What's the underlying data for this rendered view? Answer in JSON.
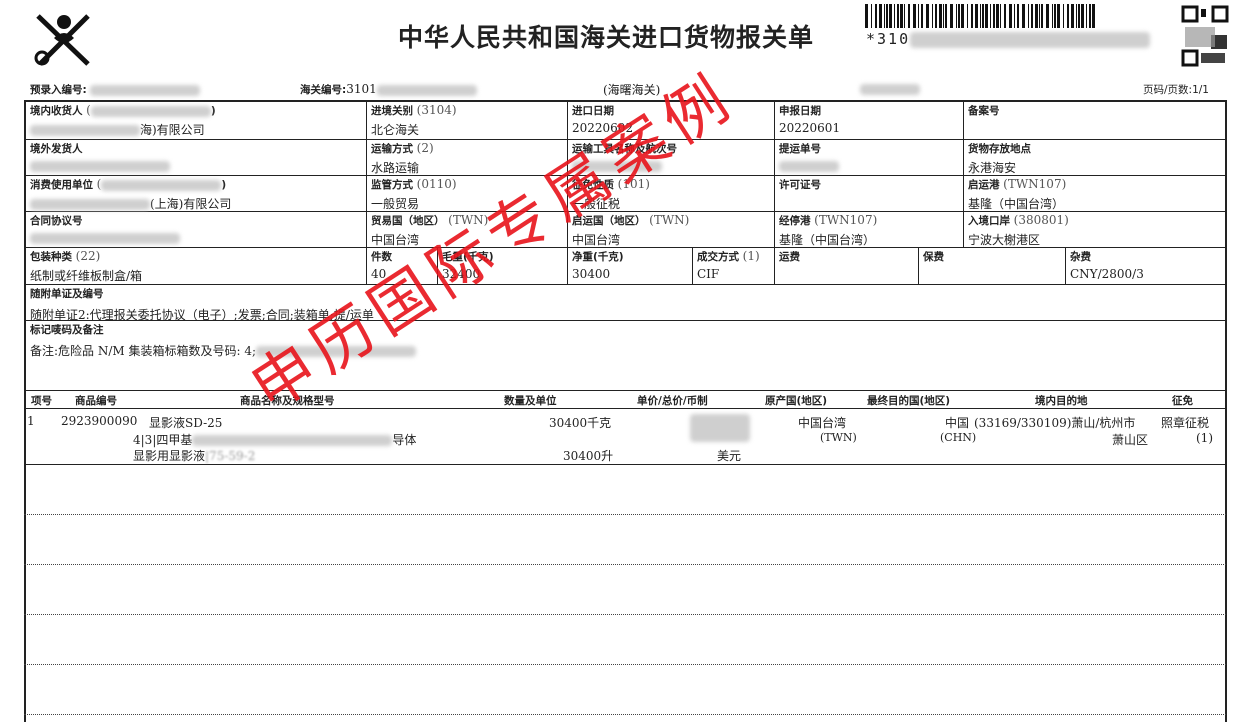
{
  "header": {
    "title": "中华人民共和国海关进口货物报关单",
    "barcode_prefix": "*310",
    "pre_entry_label": "预录入编号:",
    "customs_no_label": "海关编号:",
    "customs_no": "3101",
    "customs_office": "(海曙海关)",
    "page_label": "页码/页数:1/1"
  },
  "fields": {
    "consignee": {
      "label": "境内收货人",
      "code": "(",
      "value": "海)有限公司"
    },
    "entry_customs": {
      "label": "进境关别",
      "code": "(3104)",
      "value": "北仑海关"
    },
    "import_date": {
      "label": "进口日期",
      "value": "20220602"
    },
    "declare_date": {
      "label": "申报日期",
      "value": "20220601"
    },
    "record_no": {
      "label": "备案号",
      "value": ""
    },
    "consignor": {
      "label": "境外发货人",
      "value": ""
    },
    "transport_mode": {
      "label": "运输方式",
      "code": "(2)",
      "value": "水路运输"
    },
    "vessel": {
      "label": "运输工具名称及航次号",
      "value": ""
    },
    "bill_no": {
      "label": "提运单号",
      "value": ""
    },
    "storage": {
      "label": "货物存放地点",
      "value": "永港海安"
    },
    "consumer": {
      "label": "消费使用单位",
      "code": "(",
      "value": "(上海)有限公司"
    },
    "supervision": {
      "label": "监管方式",
      "code": "(0110)",
      "value": "一般贸易"
    },
    "levy_nature": {
      "label": "征免性质",
      "code": "(101)",
      "value": "一般征税"
    },
    "license": {
      "label": "许可证号",
      "value": ""
    },
    "departure_port": {
      "label": "启运港",
      "code": "(TWN107)",
      "value": "基隆（中国台湾）"
    },
    "contract": {
      "label": "合同协议号",
      "value": ""
    },
    "trade_country": {
      "label": "贸易国（地区）",
      "code": "(TWN)",
      "value": "中国台湾"
    },
    "origin_country": {
      "label": "启运国（地区）",
      "code": "(TWN)",
      "value": "中国台湾"
    },
    "transit_port": {
      "label": "经停港",
      "code": "(TWN107)",
      "value": "基隆（中国台湾）"
    },
    "entry_port": {
      "label": "入境口岸",
      "code": "(380801)",
      "value": "宁波大榭港区"
    },
    "package_type": {
      "label": "包装种类",
      "code": "(22)",
      "value": "纸制或纤维板制盒/箱"
    },
    "pieces": {
      "label": "件数",
      "value": "40"
    },
    "gross_weight": {
      "label": "毛重(千克)",
      "value": "32400"
    },
    "net_weight": {
      "label": "净重(千克)",
      "value": "30400"
    },
    "trans_mode": {
      "label": "成交方式",
      "code": "(1)",
      "value": "CIF"
    },
    "freight": {
      "label": "运费",
      "value": ""
    },
    "insurance": {
      "label": "保费",
      "value": ""
    },
    "misc": {
      "label": "杂费",
      "value": "CNY/2800/3"
    },
    "documents": {
      "label": "随附单证及编号",
      "value": "随附单证2:代理报关委托协议（电子）;发票;合同;装箱单;提/运单"
    },
    "marks": {
      "label": "标记唛码及备注",
      "value": "备注:危险品 N/M  集装箱标箱数及号码: 4;"
    }
  },
  "items": {
    "headers": [
      "项号",
      "商品编号",
      "商品名称及规格型号",
      "数量及单位",
      "单价/总价/币制",
      "原产国(地区)",
      "最终目的国(地区)",
      "境内目的地",
      "征免"
    ],
    "rows": [
      {
        "no": "1",
        "hs": "2923900090",
        "name": "显影液SD-25",
        "spec1": "4|3|四甲基",
        "spec1b": "导体",
        "spec2": "显影用显影液",
        "spec2b": "|75-59-2",
        "qty1": "30400千克",
        "qty2": "30400升",
        "currency": "美元",
        "origin": "中国台湾",
        "origin_code": "(TWN)",
        "dest": "中国",
        "dest_code": "(CHN)",
        "domestic": "(33169/330109)萧山/杭州市",
        "domestic2": "萧山区",
        "levy": "照章征税",
        "levy_code": "(1)"
      }
    ]
  },
  "stamp": "申历国际专属案例"
}
